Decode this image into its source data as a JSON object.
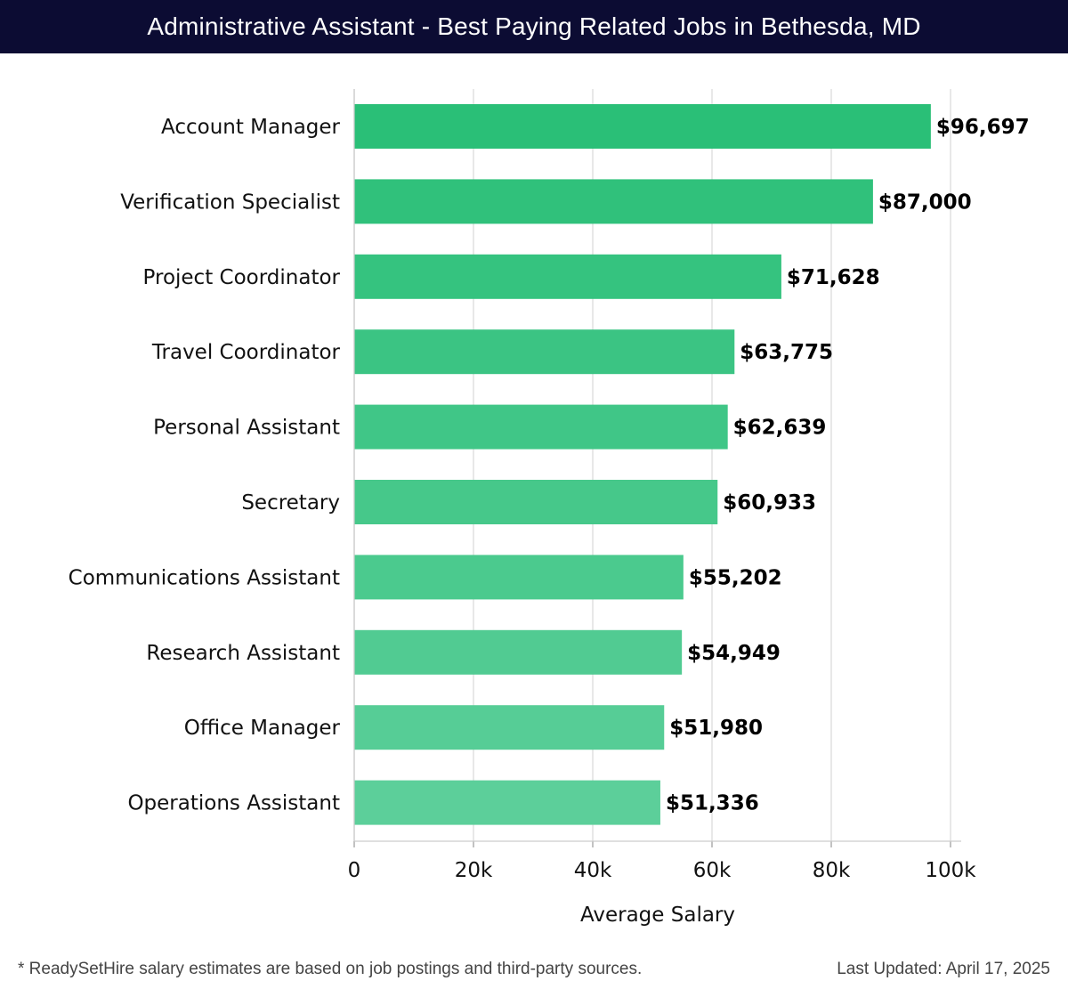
{
  "header": {
    "title": "Administrative Assistant - Best Paying Related Jobs in Bethesda, MD"
  },
  "footer": {
    "note": "* ReadySetHire salary estimates are based on job postings and third-party sources.",
    "updated": "Last Updated: April 17, 2025"
  },
  "colors": {
    "header_bg": "#0c0c33",
    "bar_top": "#2abf77",
    "bar_bottom": "#5ccf9a",
    "grid": "#e0e0e0"
  },
  "chart_data": {
    "type": "bar",
    "orientation": "horizontal",
    "categories": [
      "Account Manager",
      "Verification Specialist",
      "Project Coordinator",
      "Travel Coordinator",
      "Personal Assistant",
      "Secretary",
      "Communications Assistant",
      "Research Assistant",
      "Office Manager",
      "Operations Assistant"
    ],
    "values": [
      96697,
      87000,
      71628,
      63775,
      62639,
      60933,
      55202,
      54949,
      51980,
      51336
    ],
    "value_labels": [
      "$96,697",
      "$87,000",
      "$71,628",
      "$63,775",
      "$62,639",
      "$60,933",
      "$55,202",
      "$54,949",
      "$51,980",
      "$51,336"
    ],
    "xlabel": "Average Salary",
    "xlim": [
      0,
      100000
    ],
    "xticks": [
      0,
      20000,
      40000,
      60000,
      80000,
      100000
    ],
    "xtick_labels": [
      "0",
      "20k",
      "40k",
      "60k",
      "80k",
      "100k"
    ],
    "grid": true
  }
}
